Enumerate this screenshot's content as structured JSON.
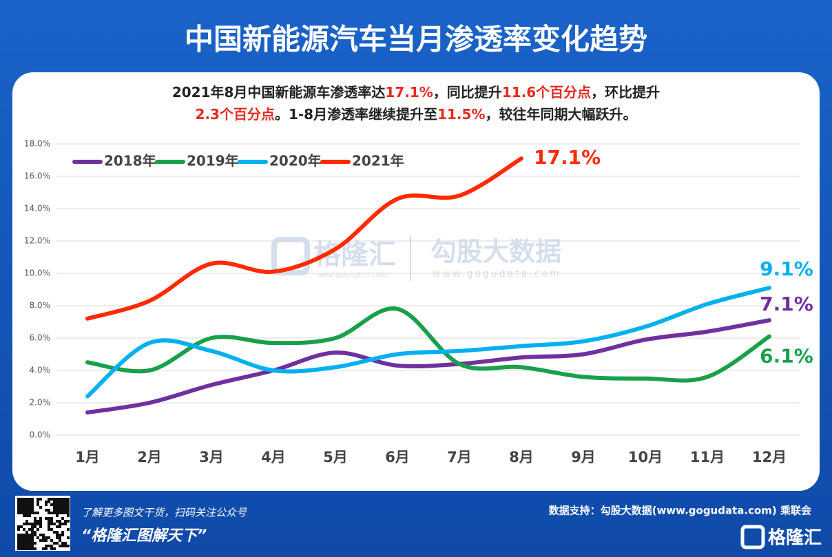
{
  "chart_data": {
    "type": "line",
    "title": "中国新能源汽车当月渗透率变化趋势",
    "subtitle_lines": [
      [
        {
          "text": "2021年8月中国新能源车渗透率达"
        },
        {
          "text": "17.1%",
          "highlight": true
        },
        {
          "text": "，同比提升"
        },
        {
          "text": "11.6个百分点",
          "highlight": true
        },
        {
          "text": "，环比提升"
        }
      ],
      [
        {
          "text": "2.3个百分点",
          "highlight": true
        },
        {
          "text": "。1-8月渗透率继续提升至"
        },
        {
          "text": "11.5%",
          "highlight": true
        },
        {
          "text": "，较往年同期大幅跃升。"
        }
      ]
    ],
    "highlight_color": "#e8291c",
    "categories": [
      "1月",
      "2月",
      "3月",
      "4月",
      "5月",
      "6月",
      "7月",
      "8月",
      "9月",
      "10月",
      "11月",
      "12月"
    ],
    "series": [
      {
        "name": "2018年",
        "color": "#7030a0",
        "values": [
          1.4,
          2.0,
          3.1,
          4.0,
          5.1,
          4.3,
          4.4,
          4.8,
          5.0,
          5.9,
          6.4,
          7.1
        ],
        "value_labels": [
          null,
          null,
          null,
          null,
          null,
          null,
          null,
          null,
          null,
          null,
          null,
          "7.1%"
        ]
      },
      {
        "name": "2019年",
        "color": "#1aa04a",
        "values": [
          4.5,
          4.0,
          6.0,
          5.7,
          6.0,
          7.8,
          4.4,
          4.2,
          3.6,
          3.5,
          3.6,
          6.1
        ],
        "value_labels": [
          null,
          null,
          null,
          null,
          null,
          null,
          null,
          null,
          null,
          null,
          null,
          "6.1%"
        ]
      },
      {
        "name": "2020年",
        "color": "#00b0f0",
        "values": [
          2.4,
          5.7,
          5.2,
          4.0,
          4.2,
          5.0,
          5.2,
          5.5,
          5.8,
          6.7,
          8.1,
          9.1
        ],
        "value_labels": [
          null,
          null,
          null,
          null,
          null,
          null,
          null,
          null,
          null,
          null,
          null,
          "9.1%"
        ]
      },
      {
        "name": "2021年",
        "color": "#ff2a00",
        "values": [
          7.2,
          8.3,
          10.6,
          10.1,
          11.5,
          14.6,
          14.8,
          17.1,
          null,
          null,
          null,
          null
        ],
        "value_labels": [
          null,
          null,
          null,
          null,
          null,
          null,
          null,
          "17.1%",
          null,
          null,
          null,
          null
        ]
      }
    ],
    "ylim": [
      0,
      18
    ],
    "yticks": [
      {
        "value": 0,
        "label": "0.0%"
      },
      {
        "value": 2,
        "label": "2.0%"
      },
      {
        "value": 4,
        "label": "4.0%"
      },
      {
        "value": 6,
        "label": "6.0%"
      },
      {
        "value": 8,
        "label": "8.0%"
      },
      {
        "value": 10,
        "label": "10.0%"
      },
      {
        "value": 12,
        "label": "12.0%"
      },
      {
        "value": 14,
        "label": "14.0%"
      },
      {
        "value": 16,
        "label": "16.0%"
      },
      {
        "value": 18,
        "label": "18.0%"
      }
    ],
    "grid": true,
    "smooth": true,
    "legend": "top-left",
    "watermark": {
      "brand": "格隆汇",
      "brand_url": "www.gelonghui.com",
      "partner": "勾股大数据",
      "partner_url": "www.gogudata.com"
    },
    "footer": {
      "prompt": "了解更多图文干货，扫码关注公众号",
      "slogan": "“格隆汇图解天下”",
      "source": "数据支持：勾股大数据(www.gogudata.com) 乘联会",
      "logo": "格隆汇"
    }
  }
}
